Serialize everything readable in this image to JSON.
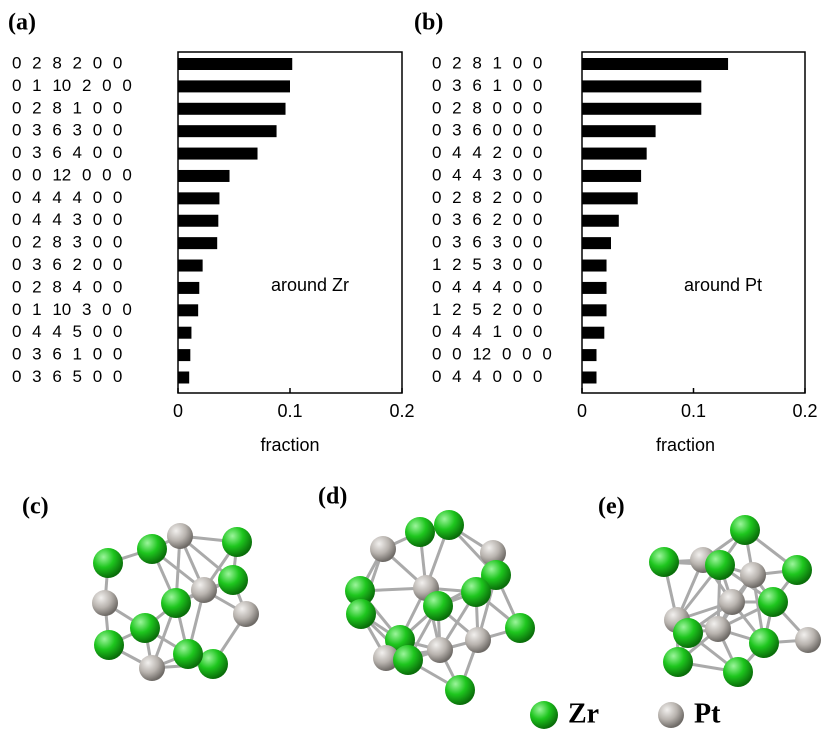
{
  "chart_data": [
    {
      "type": "bar",
      "orientation": "horizontal",
      "panel_label": "(a)",
      "annotation": "around Zr",
      "xlabel": "fraction",
      "categories": [
        "0 2 8 2 0 0",
        "0 1 10 2 0 0",
        "0 2 8 1 0 0",
        "0 3 6 3 0 0",
        "0 3 6 4 0 0",
        "0 0 12 0 0 0",
        "0 4 4 4 0 0",
        "0 4 4 3 0 0",
        "0 2 8 3 0 0",
        "0 3 6 2 0 0",
        "0 2 8 4 0 0",
        "0 1 10 3 0 0",
        "0 4 4 5 0 0",
        "0 3 6 1 0 0",
        "0 3 6 5 0 0"
      ],
      "values": [
        0.102,
        0.1,
        0.096,
        0.088,
        0.071,
        0.046,
        0.037,
        0.036,
        0.035,
        0.022,
        0.019,
        0.018,
        0.012,
        0.011,
        0.01
      ],
      "color": "#000000",
      "xlim": [
        0,
        0.2
      ],
      "xticks": [
        0,
        0.1,
        0.2
      ]
    },
    {
      "type": "bar",
      "orientation": "horizontal",
      "panel_label": "(b)",
      "annotation": "around Pt",
      "xlabel": "fraction",
      "categories": [
        "0 2 8 1 0 0",
        "0 3 6 1 0 0",
        "0 2 8 0 0 0",
        "0 3 6 0 0 0",
        "0 4 4 2 0 0",
        "0 4 4 3 0 0",
        "0 2 8 2 0 0",
        "0 3 6 2 0 0",
        "0 3 6 3 0 0",
        "1 2 5 3 0 0",
        "0 4 4 4 0 0",
        "1 2 5 2 0 0",
        "0 4 4 1 0 0",
        "0 0 12 0 0 0",
        "0 4 4 0 0 0"
      ],
      "values": [
        0.131,
        0.107,
        0.107,
        0.066,
        0.058,
        0.053,
        0.05,
        0.033,
        0.026,
        0.022,
        0.022,
        0.022,
        0.02,
        0.013,
        0.013
      ],
      "color": "#000000",
      "xlim": [
        0,
        0.2
      ],
      "xticks": [
        0,
        0.1,
        0.2
      ]
    }
  ],
  "figure": {
    "panels": [
      "(c)",
      "(d)",
      "(e)"
    ],
    "legend": [
      "Zr",
      "Pt"
    ]
  }
}
